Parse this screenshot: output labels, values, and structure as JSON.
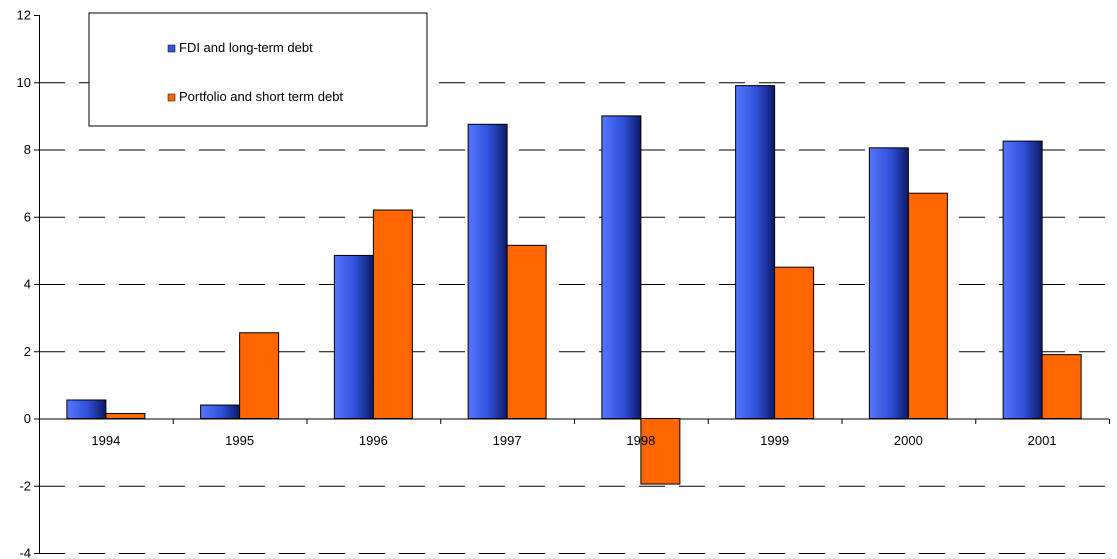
{
  "chart_data": {
    "type": "bar",
    "title": "",
    "xlabel": "",
    "ylabel": "",
    "categories": [
      "1994",
      "1995",
      "1996",
      "1997",
      "1998",
      "1999",
      "2000",
      "2001"
    ],
    "series": [
      {
        "name": "FDI and long-term debt",
        "values": [
          0.55,
          0.4,
          4.85,
          8.75,
          9.0,
          9.9,
          8.05,
          8.25
        ]
      },
      {
        "name": "Portfolio and short term debt",
        "values": [
          0.15,
          2.55,
          6.2,
          5.15,
          -1.95,
          4.5,
          6.7,
          1.9
        ]
      }
    ],
    "ylim": [
      -4,
      12
    ],
    "yticks": [
      "-4",
      "-2",
      "0",
      "2",
      "4",
      "6",
      "8",
      "10",
      "12"
    ],
    "grid": "dashed horizontal",
    "legend_position": "top-left",
    "colors": {
      "series_1": "#3355dd",
      "series_2": "#ff6600"
    }
  }
}
